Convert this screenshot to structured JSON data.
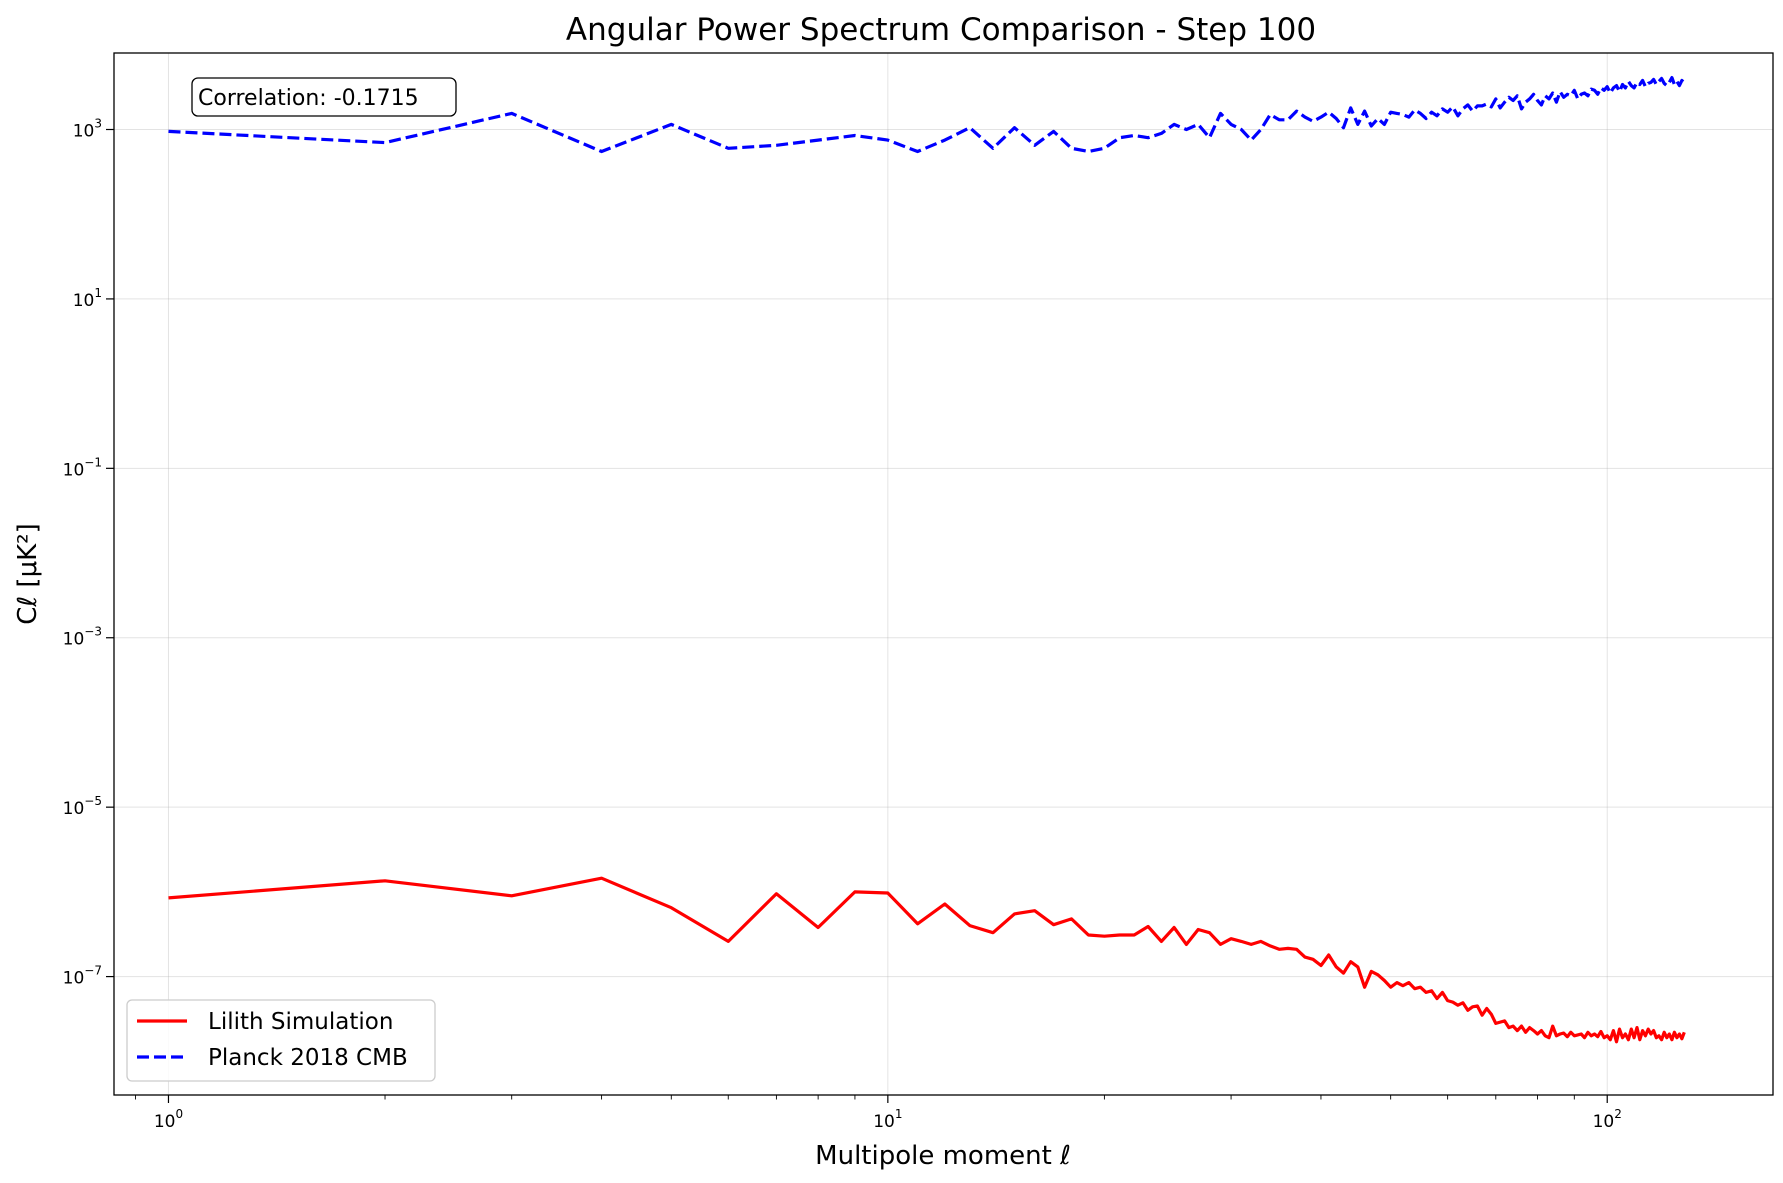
{
  "chart_data": {
    "type": "line",
    "title": "Angular Power Spectrum Comparison - Step 100",
    "xlabel": "Multipole moment ℓ",
    "ylabel": "Cℓ [μK²]",
    "xscale": "log",
    "yscale": "log",
    "xlim": [
      0.84,
      170
    ],
    "ylim": [
      4e-09,
      8000.0
    ],
    "x_major_ticks": [
      {
        "value": 1,
        "base": "10",
        "exp": "0"
      },
      {
        "value": 10,
        "base": "10",
        "exp": "1"
      },
      {
        "value": 100,
        "base": "10",
        "exp": "2"
      }
    ],
    "y_major_ticks": [
      {
        "value": 1000.0,
        "base": "10",
        "exp": "3"
      },
      {
        "value": 10.0,
        "base": "10",
        "exp": "1"
      },
      {
        "value": 0.1,
        "base": "10",
        "exp": "−1"
      },
      {
        "value": 0.001,
        "base": "10",
        "exp": "−3"
      },
      {
        "value": 1e-05,
        "base": "10",
        "exp": "−5"
      },
      {
        "value": 1e-07,
        "base": "10",
        "exp": "−7"
      }
    ],
    "grid": true,
    "legend_position": "bottom-left",
    "annotation": "Correlation: -0.1715",
    "series": [
      {
        "name": "Lilith Simulation",
        "color": "#ff0000",
        "style": "solid",
        "x": [
          1,
          2,
          3,
          4,
          5,
          6,
          7,
          8,
          9,
          10,
          11,
          12,
          13,
          14,
          15,
          16,
          17,
          18,
          19,
          20,
          21,
          22,
          23,
          24,
          25,
          26,
          27,
          28,
          29,
          30,
          31,
          32,
          33,
          34,
          35,
          36,
          37,
          38,
          39,
          40,
          41,
          42,
          43,
          44,
          45,
          46,
          47,
          48,
          49,
          50,
          51,
          52,
          53,
          54,
          55,
          56,
          57,
          58,
          59,
          60,
          61,
          62,
          63,
          64,
          65,
          66,
          67,
          68,
          69,
          70,
          71,
          72,
          73,
          74,
          75,
          76,
          77,
          78,
          79,
          80,
          81,
          82,
          83,
          84,
          85,
          86,
          87,
          88,
          89,
          90,
          91,
          92,
          93,
          94,
          95,
          96,
          97,
          98,
          99,
          100,
          101,
          102,
          103,
          104,
          105,
          106,
          107,
          108,
          109,
          110,
          111,
          112,
          113,
          114,
          115,
          116,
          117,
          118,
          119,
          120,
          121,
          122,
          123,
          124,
          125,
          126,
          127,
          128
        ],
        "y": [
          8.5e-07,
          1.35e-06,
          9e-07,
          1.45e-06,
          6.5e-07,
          2.6e-07,
          9.5e-07,
          3.8e-07,
          1e-06,
          9.7e-07,
          4.2e-07,
          7.2e-07,
          4e-07,
          3.3e-07,
          5.5e-07,
          6e-07,
          4.1e-07,
          4.8e-07,
          3.1e-07,
          3e-07,
          3.1e-07,
          3.1e-07,
          3.9e-07,
          2.6e-07,
          3.8e-07,
          2.4e-07,
          3.6e-07,
          3.3e-07,
          2.4e-07,
          2.8e-07,
          2.6e-07,
          2.4e-07,
          2.6e-07,
          2.3e-07,
          2.1e-07,
          2.15e-07,
          2.1e-07,
          1.7e-07,
          1.6e-07,
          1.35e-07,
          1.8e-07,
          1.3e-07,
          1.1e-07,
          1.5e-07,
          1.3e-07,
          7.5e-08,
          1.15e-07,
          1.05e-07,
          9e-08,
          7.5e-08,
          8.5e-08,
          7.8e-08,
          8.5e-08,
          7.2e-08,
          7.5e-08,
          6.5e-08,
          6.8e-08,
          5.5e-08,
          6.5e-08,
          5.2e-08,
          5e-08,
          4.6e-08,
          4.9e-08,
          4e-08,
          4.4e-08,
          4.5e-08,
          3.5e-08,
          4.2e-08,
          3.6e-08,
          2.8e-08,
          2.9e-08,
          3e-08,
          2.5e-08,
          2.6e-08,
          2.3e-08,
          2.6e-08,
          2.2e-08,
          2.5e-08,
          2.3e-08,
          2.1e-08,
          2.3e-08,
          2e-08,
          1.9e-08,
          2.6e-08,
          2e-08,
          2.1e-08,
          2.15e-08,
          1.95e-08,
          2.2e-08,
          2e-08,
          2.05e-08,
          2.1e-08,
          1.9e-08,
          2.2e-08,
          2e-08,
          2.1e-08,
          1.95e-08,
          2.25e-08,
          1.9e-08,
          2e-08,
          1.8e-08,
          2.3e-08,
          1.7e-08,
          2.4e-08,
          1.9e-08,
          2.1e-08,
          1.8e-08,
          2.4e-08,
          1.9e-08,
          2.5e-08,
          1.8e-08,
          2.3e-08,
          2e-08,
          2.4e-08,
          2.1e-08,
          2.3e-08,
          1.9e-08,
          2e-08,
          1.8e-08,
          2.2e-08,
          1.9e-08,
          2.1e-08,
          1.8e-08,
          2.2e-08,
          1.9e-08,
          2.1e-08,
          1.85e-08,
          2.2e-08
        ]
      },
      {
        "name": "Planck 2018 CMB",
        "color": "#0000ff",
        "style": "dashed",
        "x": [
          1,
          2,
          3,
          4,
          5,
          6,
          7,
          8,
          9,
          10,
          11,
          12,
          13,
          14,
          15,
          16,
          17,
          18,
          19,
          20,
          21,
          22,
          23,
          24,
          25,
          26,
          27,
          28,
          29,
          30,
          31,
          32,
          33,
          34,
          35,
          36,
          37,
          38,
          39,
          40,
          41,
          42,
          43,
          44,
          45,
          46,
          47,
          48,
          49,
          50,
          51,
          52,
          53,
          54,
          55,
          56,
          57,
          58,
          59,
          60,
          61,
          62,
          63,
          64,
          65,
          66,
          67,
          68,
          69,
          70,
          71,
          72,
          73,
          74,
          75,
          76,
          77,
          78,
          79,
          80,
          81,
          82,
          83,
          84,
          85,
          86,
          87,
          88,
          89,
          90,
          91,
          92,
          93,
          94,
          95,
          96,
          97,
          98,
          99,
          100,
          101,
          102,
          103,
          104,
          105,
          106,
          107,
          108,
          109,
          110,
          111,
          112,
          113,
          114,
          115,
          116,
          117,
          118,
          119,
          120,
          121,
          122,
          123,
          124,
          125,
          126,
          127,
          128
        ],
        "y": [
          950,
          700,
          1550,
          550,
          1150,
          600,
          650,
          750,
          850,
          750,
          550,
          750,
          1050,
          600,
          1050,
          650,
          950,
          600,
          550,
          600,
          800,
          850,
          800,
          900,
          1150,
          1000,
          1150,
          800,
          1550,
          1150,
          1000,
          750,
          1000,
          1500,
          1300,
          1300,
          1650,
          1400,
          1250,
          1400,
          1600,
          1350,
          1050,
          1800,
          1150,
          1650,
          1100,
          1350,
          1150,
          1600,
          1550,
          1500,
          1400,
          1700,
          1550,
          1350,
          1600,
          1450,
          1750,
          1600,
          1850,
          1450,
          1750,
          1950,
          1650,
          1900,
          1900,
          2000,
          1850,
          2300,
          1800,
          2100,
          2400,
          2200,
          2500,
          1750,
          2100,
          2300,
          2600,
          2200,
          1950,
          2500,
          2300,
          2700,
          2100,
          2800,
          2400,
          2600,
          2500,
          2900,
          2300,
          2600,
          2700,
          2500,
          3000,
          2900,
          2600,
          3100,
          2900,
          3200,
          2700,
          3100,
          3300,
          2800,
          3400,
          3100,
          3700,
          3300,
          3100,
          3600,
          3400,
          3800,
          3200,
          3500,
          3600,
          3900,
          3400,
          3700,
          4000,
          3500,
          3300,
          3600,
          4100,
          3400,
          3700,
          3300,
          3800,
          3500
        ]
      }
    ]
  }
}
